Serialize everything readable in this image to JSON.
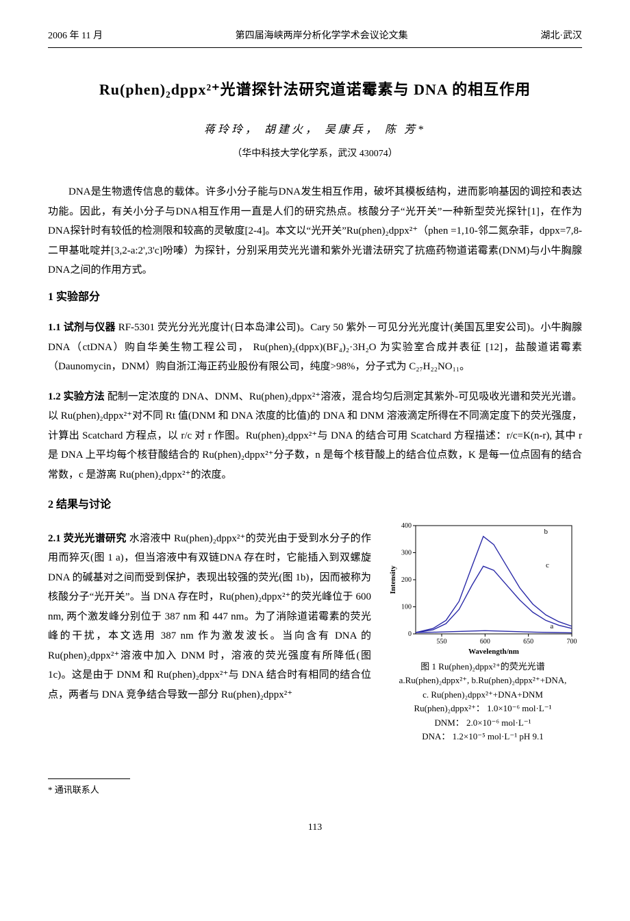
{
  "header": {
    "left": "2006 年 11 月",
    "center": "第四届海峡两岸分析化学学术会议论文集",
    "right": "湖北·武汉"
  },
  "title": "Ru(phen)₂dppx²⁺光谱探针法研究道诺霉素与 DNA 的相互作用",
  "authors": "蒋玲玲， 胡建火， 吴康兵， 陈  芳*",
  "affiliation": "（华中科技大学化学系，武汉  430074）",
  "intro": "DNA是生物遗传信息的载体。许多小分子能与DNA发生相互作用，破坏其模板结构，进而影响基因的调控和表达功能。因此，有关小分子与DNA相互作用一直是人们的研究热点。核酸分子“光开关”一种新型荧光探针[1]，在作为DNA探针时有较低的检测限和较高的灵敏度[2-4]。本文以“光开关”Ru(phen)₂dppx²⁺（phen =1,10-邻二氮杂菲，dppx=7,8-二甲基吡啶并[3,2-a:2',3'c]吩嗪）为探针，分别采用荧光光谱和紫外光谱法研究了抗癌药物道诺霉素(DNM)与小牛胸腺DNA之间的作用方式。",
  "sec1_title": "1 实验部分",
  "sec11_label": "1.1 试剂与仪器",
  "sec11_body": "RF-5301 荧光分光光度计(日本岛津公司)。Cary 50 紫外－可见分光光度计(美国瓦里安公司)。小牛胸腺 DNA（ctDNA）购自华美生物工程公司， Ru(phen)₂(dppx)(BF₄)₂·3H₂O 为实验室合成并表征 [12]，盐酸道诺霉素（Daunomycin，DNM）购自浙江海正药业股份有限公司，纯度>98%，分子式为 C₂₇H₂₂NO₁₁。",
  "sec12_label": "1.2 实验方法",
  "sec12_body": "配制一定浓度的 DNA、DNM、Ru(phen)₂dppx²⁺溶液，混合均匀后测定其紫外-可见吸收光谱和荧光光谱。以 Ru(phen)₂dppx²⁺对不同 Rt 值(DNM 和 DNA 浓度的比值)的 DNA 和 DNM 溶液滴定所得在不同滴定度下的荧光强度，计算出 Scatchard 方程点，以 r/c 对 r 作图。Ru(phen)₂dppx²⁺与 DNA 的结合可用 Scatchard 方程描述：r/c=K(n-r), 其中 r 是 DNA 上平均每个核苷酸结合的 Ru(phen)₂dppx²⁺分子数，n 是每个核苷酸上的结合位点数，K 是每一位点固有的结合常数，c 是游离 Ru(phen)₂dppx²⁺的浓度。",
  "sec2_title": "2  结果与讨论",
  "sec21_label": "2.1 荧光光谱研究",
  "sec21_body": "水溶液中 Ru(phen)₂dppx²⁺的荧光由于受到水分子的作用而猝灭(图 1 a)，但当溶液中有双链DNA 存在时，它能插入到双螺旋 DNA 的碱基对之间而受到保护，表现出较强的荧光(图 1b)，因而被称为核酸分子“光开关”。当 DNA 存在时，Ru(phen)₂dppx²⁺的荧光峰位于 600 nm, 两个激发峰分别位于 387 nm 和 447 nm。为了消除道诺霉素的荧光峰的干扰，本文选用 387 nm 作为激发波长。当向含有 DNA 的 Ru(phen)₂dppx²⁺溶液中加入 DNM 时，溶液的荧光强度有所降低(图 1c)。这是由于 DNM 和 Ru(phen)₂dppx²⁺与 DNA 结合时有相同的结合位点，两者与 DNA 竞争结合导致一部分 Ru(phen)₂dppx²⁺",
  "figure": {
    "type": "line",
    "xlim": [
      520,
      700
    ],
    "ylim": [
      0,
      400
    ],
    "xticks": [
      550,
      600,
      650,
      700
    ],
    "yticks": [
      0,
      100,
      200,
      300,
      400
    ],
    "xlabel": "Wavelength/nm",
    "ylabel": "Intensity",
    "axis_color": "#000000",
    "line_color": "#2a2aa8",
    "background": "#ffffff",
    "label_fontsize": 11,
    "tick_fontsize": 10,
    "line_width": 1.4,
    "series": {
      "a": {
        "label": "a",
        "label_x": 675,
        "label_y": 20,
        "points": [
          [
            520,
            5
          ],
          [
            540,
            6
          ],
          [
            560,
            8
          ],
          [
            580,
            10
          ],
          [
            600,
            12
          ],
          [
            620,
            10
          ],
          [
            640,
            8
          ],
          [
            660,
            6
          ],
          [
            680,
            5
          ],
          [
            700,
            4
          ]
        ]
      },
      "b": {
        "label": "b",
        "label_x": 668,
        "label_y": 370,
        "points": [
          [
            520,
            5
          ],
          [
            540,
            20
          ],
          [
            555,
            50
          ],
          [
            570,
            120
          ],
          [
            585,
            250
          ],
          [
            598,
            360
          ],
          [
            610,
            330
          ],
          [
            625,
            250
          ],
          [
            640,
            170
          ],
          [
            655,
            110
          ],
          [
            670,
            70
          ],
          [
            685,
            45
          ],
          [
            700,
            28
          ]
        ]
      },
      "c": {
        "label": "c",
        "label_x": 670,
        "label_y": 245,
        "points": [
          [
            520,
            5
          ],
          [
            540,
            15
          ],
          [
            555,
            38
          ],
          [
            570,
            90
          ],
          [
            585,
            180
          ],
          [
            598,
            250
          ],
          [
            610,
            235
          ],
          [
            625,
            180
          ],
          [
            640,
            125
          ],
          [
            655,
            80
          ],
          [
            670,
            50
          ],
          [
            685,
            32
          ],
          [
            700,
            20
          ]
        ]
      }
    },
    "caption_title": "图 1   Ru(phen)₂dppx²⁺的荧光光谱",
    "caption_lines": [
      "a.Ru(phen)₂dppx²⁺, b.Ru(phen)₂dppx²⁺+DNA,",
      "c. Ru(phen)₂dppx²⁺+DNA+DNM",
      "Ru(phen)₂dppx²⁺： 1.0×10⁻⁶ mol·L⁻¹",
      "DNM： 2.0×10⁻⁶ mol·L⁻¹",
      "DNA： 1.2×10⁻⁵ mol·L⁻¹   pH 9.1"
    ]
  },
  "footnote": "* 通讯联系人",
  "pagenum": "113"
}
